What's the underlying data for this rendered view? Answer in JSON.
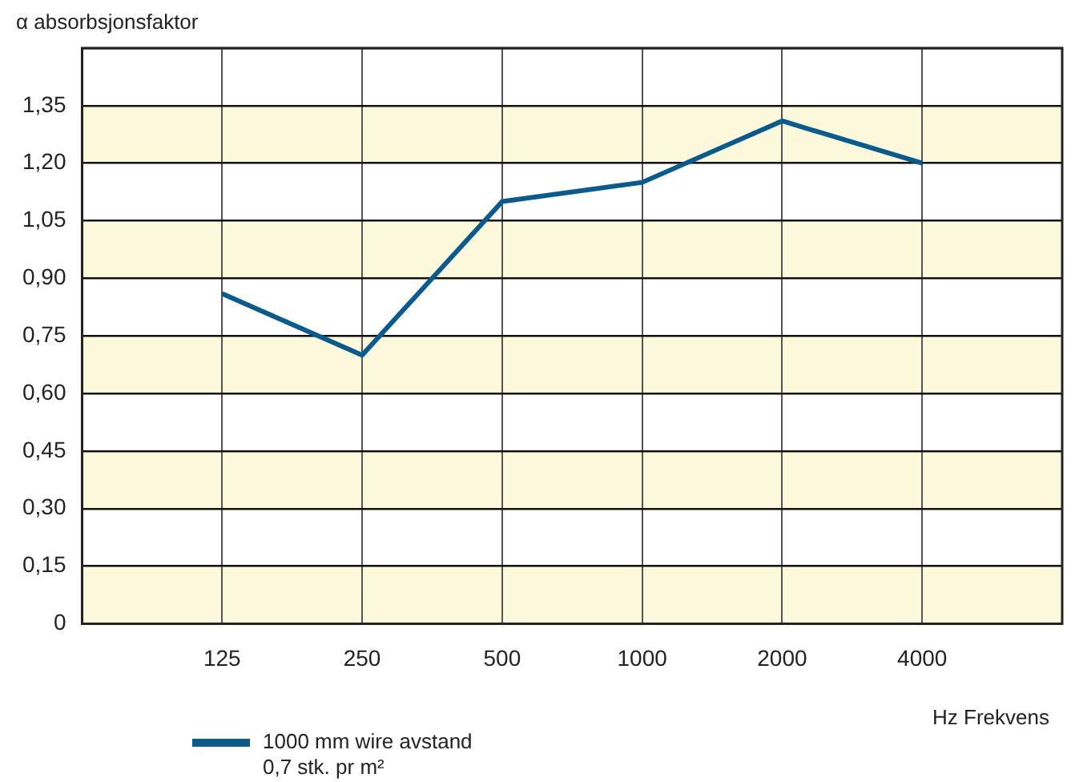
{
  "chart_data": {
    "type": "line",
    "xlabel": "Hz Frekvens",
    "ylabel": "α absorbsjonsfaktor",
    "x": [
      125,
      250,
      500,
      1000,
      2000,
      4000
    ],
    "series": [
      {
        "name": "1000 mm wire avstand\n0,7 stk. pr m²",
        "color": "#0a5a8c",
        "values": [
          0.86,
          0.7,
          1.1,
          1.15,
          1.31,
          1.2
        ]
      }
    ],
    "log": "x",
    "xlim": [
      62.5,
      8000
    ],
    "xticks": [
      125,
      250,
      500,
      1000,
      2000,
      4000
    ],
    "ylim": [
      0,
      1.5
    ],
    "yticks": [
      0,
      {
        "value": 0.15,
        "label": "0,15"
      },
      {
        "value": 0.3,
        "label": "0,30"
      },
      {
        "value": 0.45,
        "label": "0,45"
      },
      {
        "value": 0.6,
        "label": "0,60"
      },
      {
        "value": 0.75,
        "label": "0,75"
      },
      {
        "value": 0.9,
        "label": "0,90"
      },
      {
        "value": 1.05,
        "label": "1,05"
      },
      {
        "value": 1.2,
        "label": "1,20"
      },
      {
        "value": 1.35,
        "label": "1,35"
      },
      {
        "value": 1.5,
        "label": null
      }
    ],
    "bands": [
      {
        "axis": "y",
        "from": 0,
        "to": 0.15,
        "color": "#fdf9dc"
      },
      {
        "axis": "y",
        "from": 0.3,
        "to": 0.45,
        "color": "#fdf9dc"
      },
      {
        "axis": "y",
        "from": 0.6,
        "to": 0.75,
        "color": "#fdf9dc"
      },
      {
        "axis": "y",
        "from": 0.9,
        "to": 1.05,
        "color": "#fdf9dc"
      },
      {
        "axis": "y",
        "from": 1.2,
        "to": 1.35,
        "color": "#fdf9dc"
      }
    ],
    "grid": true,
    "legend": "bottom left",
    "marker": "none",
    "line_style": "solid"
  }
}
